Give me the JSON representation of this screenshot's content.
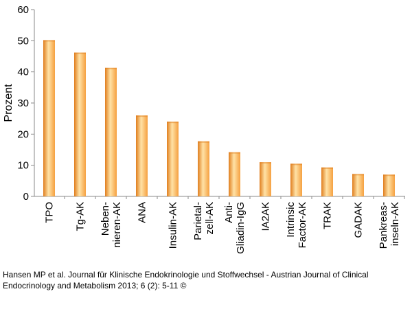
{
  "chart_data": {
    "type": "bar",
    "title": "",
    "xlabel": "",
    "ylabel": "Prozent",
    "ylim": [
      0,
      60
    ],
    "yticks": [
      0,
      10,
      20,
      30,
      40,
      50,
      60
    ],
    "grid": false,
    "legend": "none",
    "bar_color": "#f5a040",
    "bar_highlight": "#ffe2a6",
    "bar_shadow": "#e07e1e",
    "categories": [
      [
        "TPO"
      ],
      [
        "Tg-AK"
      ],
      [
        "Neben-",
        "nieren-AK"
      ],
      [
        "ANA"
      ],
      [
        "Insulin-AK"
      ],
      [
        "Parietal-",
        "zell-AK"
      ],
      [
        "Anti-",
        "Gliadin-IgG"
      ],
      [
        "IA2AK"
      ],
      [
        "Intrinsic",
        "Factor-AK"
      ],
      [
        "TRAK"
      ],
      [
        "GADAK"
      ],
      [
        "Pankreas-",
        "inseln-AK"
      ]
    ],
    "values": [
      50.2,
      46.2,
      41.3,
      26.0,
      24.0,
      17.7,
      14.2,
      11.0,
      10.5,
      9.3,
      7.2,
      7.0
    ]
  },
  "caption": "Hansen MP et al. Journal für Klinische Endokrinologie und Stoffwechsel - Austrian Journal of Clinical Endocrinology and Metabolism 2013; 6 (2): 5-11 ©"
}
